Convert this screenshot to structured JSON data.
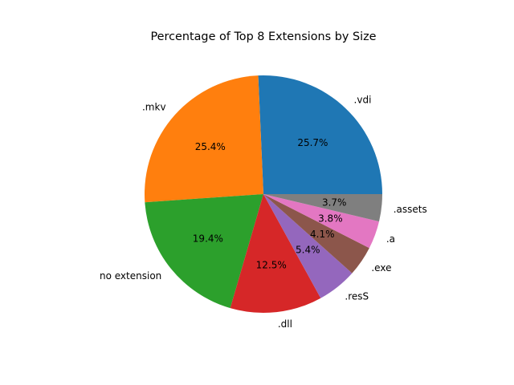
{
  "chart_data": {
    "type": "pie",
    "title": "Percentage of Top 8 Extensions by Size",
    "start_angle_deg": 0,
    "direction": "counterclockwise",
    "labels": [
      ".vdi",
      ".mkv",
      "no extension",
      ".dll",
      ".resS",
      ".exe",
      ".a",
      ".assets"
    ],
    "values": [
      25.7,
      25.4,
      19.4,
      12.5,
      5.4,
      4.1,
      3.8,
      3.7
    ],
    "percent_labels": [
      "25.7%",
      "25.4%",
      "19.4%",
      "12.5%",
      "5.4%",
      "4.1%",
      "3.8%",
      "3.7%"
    ],
    "colors": [
      "#1f77b4",
      "#ff7f0e",
      "#2ca02c",
      "#d62728",
      "#9467bd",
      "#8c564b",
      "#e377c2",
      "#7f7f7f"
    ]
  }
}
